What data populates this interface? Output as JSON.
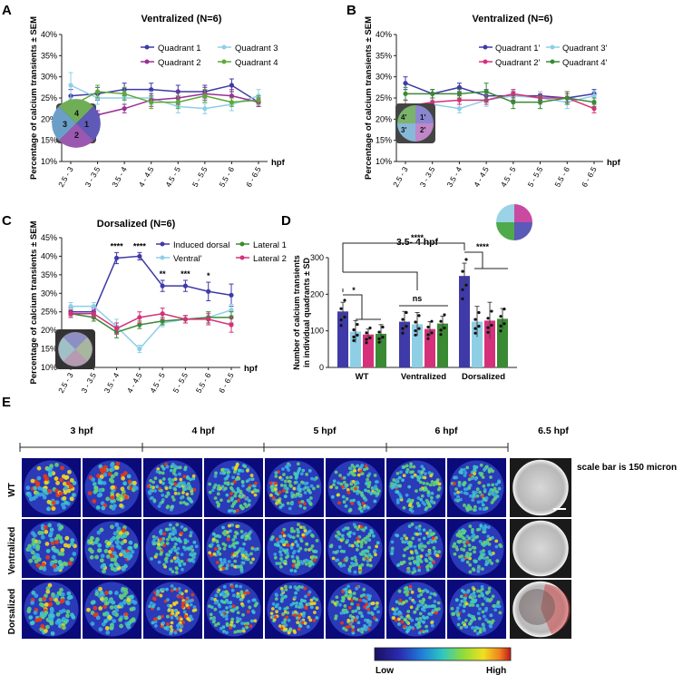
{
  "panels": {
    "A": {
      "letter": "A",
      "title": "Ventralized (N=6)",
      "legend": [
        "Quadrant 1",
        "Quadrant 3",
        "Quadrant 2",
        "Quadrant 4"
      ],
      "inset": [
        "4",
        "3",
        "1",
        "2"
      ]
    },
    "B": {
      "letter": "B",
      "title": "Ventralized (N=6)",
      "legend": [
        "Quadrant 1'",
        "Quadrant 3'",
        "Quadrant 2'",
        "Quadrant 4'"
      ],
      "inset": [
        "4'",
        "3'",
        "1'",
        "2'"
      ]
    },
    "C": {
      "letter": "C",
      "title": "Dorsalized (N=6)",
      "legend": [
        "Induced dorsal",
        "Ventral'",
        "Lateral 1",
        "Lateral 2"
      ],
      "stars": [
        "****",
        "****",
        "**",
        "***",
        "*"
      ]
    },
    "D": {
      "letter": "D",
      "title": "3.5- 4 hpf",
      "groups": [
        "WT",
        "Ventralized",
        "Dorsalized"
      ],
      "sig": [
        "*",
        "ns",
        "****",
        "****"
      ]
    },
    "E": {
      "letter": "E",
      "times": [
        "3 hpf",
        "4 hpf",
        "5 hpf",
        "6 hpf",
        "6.5 hpf"
      ],
      "rows": [
        "WT",
        "Ventralized",
        "Dorsalized"
      ],
      "scale_text": "scale bar is 150 micron",
      "cb_low": "Low",
      "cb_high": "High"
    }
  },
  "colors": {
    "q1": "#3f3aa8",
    "q3": "#8ecfe6",
    "q2": "#9a2f95",
    "q4": "#5fa836",
    "dorsal": "#3f3aa8",
    "ventral": "#8ecfe6",
    "lat1": "#3a8a33",
    "lat2": "#d6307a"
  },
  "chart_data": [
    {
      "type": "line",
      "panel": "A",
      "x": [
        "2.5 - 3",
        "3 - 3.5",
        "3.5 - 4",
        "4 - 4.5",
        "4.5 - 5",
        "5 - 5.5",
        "5.5 - 6",
        "6 - 6.5"
      ],
      "xlabel": "hpf",
      "ylabel": "Percentage of calcium transients ± SEM",
      "yticks": [
        "10%",
        "15%",
        "20%",
        "25%",
        "30%",
        "35%",
        "40%"
      ],
      "ylim": [
        10,
        40
      ],
      "series": [
        {
          "name": "Quadrant 1",
          "color": "#3f3aa8",
          "values": [
            25.5,
            26.0,
            27.0,
            27.0,
            26.5,
            26.5,
            28.0,
            24.0
          ],
          "err": [
            1.5,
            1.5,
            1.5,
            1.5,
            1.5,
            1.5,
            1.5,
            1.0
          ]
        },
        {
          "name": "Quadrant 3",
          "color": "#8ecfe6",
          "values": [
            28.0,
            25.0,
            25.0,
            25.0,
            23.0,
            22.5,
            23.5,
            25.5
          ],
          "err": [
            3.0,
            1.5,
            1.5,
            1.5,
            1.5,
            1.2,
            1.5,
            1.5
          ]
        },
        {
          "name": "Quadrant 2",
          "color": "#9a2f95",
          "values": [
            23.0,
            21.0,
            22.5,
            24.5,
            25.0,
            26.0,
            25.5,
            24.0
          ],
          "err": [
            1.5,
            1.0,
            1.0,
            1.5,
            1.5,
            1.5,
            1.5,
            1.0
          ]
        },
        {
          "name": "Quadrant 4",
          "color": "#5fa836",
          "values": [
            23.0,
            26.5,
            26.0,
            24.0,
            24.0,
            25.5,
            24.0,
            24.5
          ],
          "err": [
            1.5,
            1.5,
            1.5,
            1.5,
            1.5,
            1.5,
            1.0,
            1.0
          ]
        }
      ]
    },
    {
      "type": "line",
      "panel": "B",
      "x": [
        "2.5 - 3",
        "3 - 3.5",
        "3.5 - 4",
        "4 - 4.5",
        "4.5 - 5",
        "5 - 5.5",
        "5.5 - 6",
        "6 - 6.5"
      ],
      "xlabel": "hpf",
      "ylabel": "Percentage of calcium transients ± SEM",
      "yticks": [
        "10%",
        "15%",
        "20%",
        "25%",
        "30%",
        "35%",
        "40%"
      ],
      "ylim": [
        10,
        40
      ],
      "series": [
        {
          "name": "Quadrant 1'",
          "color": "#3f3aa8",
          "values": [
            28.5,
            26.0,
            27.5,
            25.5,
            25.5,
            25.5,
            25.0,
            26.0
          ],
          "err": [
            1.5,
            1.0,
            1.0,
            1.5,
            1.0,
            1.0,
            1.5,
            1.0
          ]
        },
        {
          "name": "Quadrant 3'",
          "color": "#8ecfe6",
          "values": [
            23.0,
            23.5,
            22.5,
            24.5,
            25.5,
            25.0,
            24.0,
            25.5
          ],
          "err": [
            1.5,
            1.0,
            1.0,
            1.5,
            1.5,
            1.5,
            1.5,
            1.0
          ]
        },
        {
          "name": "Quadrant 2'",
          "color": "#d6307a",
          "values": [
            23.0,
            24.0,
            24.5,
            24.5,
            26.0,
            25.0,
            25.0,
            22.5
          ],
          "err": [
            1.5,
            1.0,
            1.0,
            1.0,
            1.0,
            1.0,
            1.0,
            1.0
          ]
        },
        {
          "name": "Quadrant 4'",
          "color": "#3a8a33",
          "values": [
            26.0,
            26.0,
            26.0,
            26.5,
            24.0,
            24.0,
            25.0,
            24.0
          ],
          "err": [
            1.5,
            1.0,
            1.0,
            2.0,
            1.5,
            1.5,
            1.5,
            1.0
          ]
        }
      ]
    },
    {
      "type": "line",
      "panel": "C",
      "x": [
        "2.5 - 3",
        "3 - 3.5",
        "3.5 - 4",
        "4 - 4.5",
        "4.5 - 5",
        "5 - 5.5",
        "5.5 - 6",
        "6 - 6.5"
      ],
      "xlabel": "hpf",
      "ylabel": "Percentage of calcium transients ± SEM",
      "yticks": [
        "10%",
        "15%",
        "20%",
        "25%",
        "30%",
        "35%",
        "40%",
        "45%"
      ],
      "ylim": [
        10,
        45
      ],
      "series": [
        {
          "name": "Induced dorsal",
          "color": "#3f3aa8",
          "values": [
            25.0,
            25.0,
            39.5,
            40.0,
            32.0,
            32.0,
            30.5,
            29.5
          ],
          "err": [
            1.0,
            1.0,
            1.5,
            1.0,
            1.5,
            1.5,
            2.5,
            3.0
          ]
        },
        {
          "name": "Ventral'",
          "color": "#8ecfe6",
          "values": [
            26.5,
            26.5,
            21.0,
            15.0,
            22.0,
            23.0,
            23.5,
            25.5
          ],
          "err": [
            1.0,
            1.0,
            2.0,
            1.0,
            1.0,
            1.0,
            1.5,
            1.5
          ]
        },
        {
          "name": "Lateral 1",
          "color": "#3a8a33",
          "values": [
            24.5,
            23.5,
            19.5,
            21.5,
            22.5,
            23.0,
            23.5,
            23.5
          ],
          "err": [
            1.0,
            1.0,
            1.5,
            1.0,
            1.0,
            1.0,
            1.5,
            1.5
          ]
        },
        {
          "name": "Lateral 2",
          "color": "#d6307a",
          "values": [
            24.5,
            24.5,
            20.5,
            23.5,
            24.5,
            23.0,
            23.0,
            21.5
          ],
          "err": [
            1.0,
            1.0,
            1.5,
            1.5,
            1.5,
            1.0,
            1.5,
            2.0
          ]
        }
      ]
    },
    {
      "type": "bar",
      "panel": "D",
      "categories": [
        "WT",
        "Ventralized",
        "Dorsalized"
      ],
      "ylabel": "Number of calcium transients in individual quadrants ± SD",
      "ylim": [
        0,
        300
      ],
      "yticks": [
        "0",
        "100",
        "200",
        "300"
      ],
      "series": [
        {
          "color": "#3f3aa8",
          "values": [
            153,
            125,
            250
          ],
          "err": [
            25,
            28,
            35
          ]
        },
        {
          "color": "#8ecfe6",
          "values": [
            98,
            118,
            125
          ],
          "err": [
            30,
            32,
            42
          ]
        },
        {
          "color": "#d6307a",
          "values": [
            90,
            105,
            128
          ],
          "err": [
            15,
            20,
            50
          ]
        },
        {
          "color": "#3a8a33",
          "values": [
            92,
            120,
            133
          ],
          "err": [
            25,
            20,
            28
          ]
        }
      ]
    }
  ]
}
